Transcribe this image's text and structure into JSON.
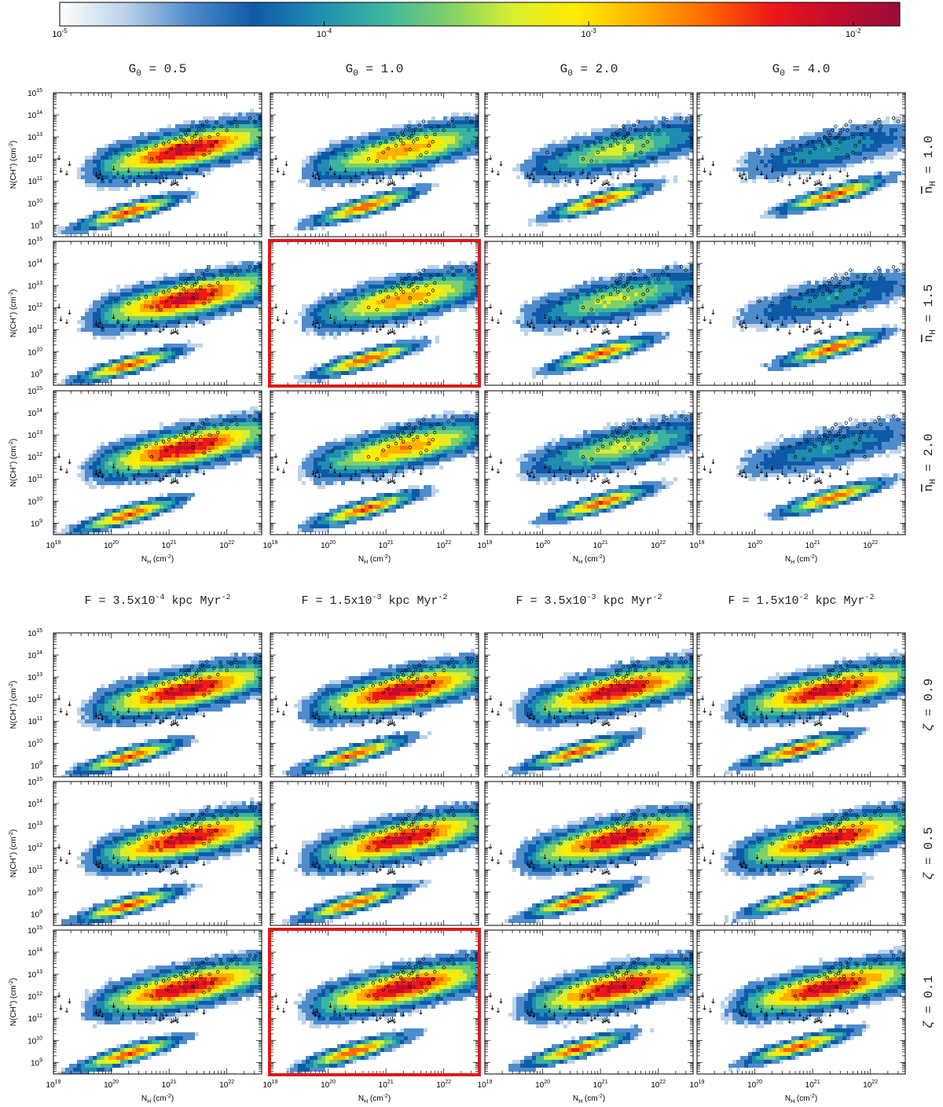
{
  "colorbar": {
    "ticks": [
      {
        "mant": "10",
        "exp": "-5",
        "value": 1e-05
      },
      {
        "mant": "10",
        "exp": "-4",
        "value": 0.0001
      },
      {
        "mant": "10",
        "exp": "-3",
        "value": 0.001
      },
      {
        "mant": "10",
        "exp": "-2",
        "value": 0.01
      }
    ],
    "range": [
      1e-05,
      0.015
    ],
    "colors": [
      "#ffffff",
      "#bcd3ea",
      "#4f8ccc",
      "#0f5aa8",
      "#1f8cb0",
      "#3bb5a0",
      "#7dd06a",
      "#d8ee30",
      "#ffec00",
      "#ffb000",
      "#ff6a00",
      "#ee1818",
      "#c40c2c",
      "#9a0c3a"
    ]
  },
  "top_block": {
    "col_titles": [
      {
        "prefix": "G",
        "sub": "0",
        "rest": " = 0.5"
      },
      {
        "prefix": "G",
        "sub": "0",
        "rest": " = 1.0"
      },
      {
        "prefix": "G",
        "sub": "0",
        "rest": " = 2.0"
      },
      {
        "prefix": "G",
        "sub": "0",
        "rest": " = 4.0"
      }
    ],
    "row_titles": [
      {
        "sym": "n",
        "sub": "H",
        "rest": " = 1.0"
      },
      {
        "sym": "n",
        "sub": "H",
        "rest": " = 1.5"
      },
      {
        "sym": "n",
        "sub": "H",
        "rest": " = 2.0"
      }
    ],
    "highlight": [
      [
        1,
        1
      ]
    ]
  },
  "bottom_block": {
    "col_titles": [
      {
        "text": "F = 3.5x10",
        "sup": "-4",
        "rest": " kpc Myr",
        "sup2": "-2"
      },
      {
        "text": "F = 1.5x10",
        "sup": "-3",
        "rest": " kpc Myr",
        "sup2": "-2"
      },
      {
        "text": "F = 3.5x10",
        "sup": "-3",
        "rest": " kpc Myr",
        "sup2": "-2"
      },
      {
        "text": "F = 1.5x10",
        "sup": "-2",
        "rest": " kpc Myr",
        "sup2": "-2"
      }
    ],
    "row_titles": [
      {
        "sym": "ζ",
        "rest": " = 0.9"
      },
      {
        "sym": "ζ",
        "rest": " = 0.5"
      },
      {
        "sym": "ζ",
        "rest": " = 0.1"
      }
    ],
    "highlight": [
      [
        2,
        1
      ]
    ]
  },
  "axes": {
    "xlabel": {
      "main": "N",
      "sub": "H",
      "unit": " (cm",
      "sup": "-2",
      "close": ")"
    },
    "ylabel": {
      "main": "N(CH",
      "sup1": "+",
      "mid": ") (cm",
      "sup2": "-2",
      "close": ")"
    },
    "xlim": [
      1e+19,
      4e+22
    ],
    "ylim": [
      300000000.0,
      1000000000000000.0
    ],
    "xscale": "log",
    "yscale": "log",
    "xticks": [
      {
        "mant": "10",
        "exp": "19",
        "value": 1e+19
      },
      {
        "mant": "10",
        "exp": "20",
        "value": 1e+20
      },
      {
        "mant": "10",
        "exp": "21",
        "value": 1e+21
      },
      {
        "mant": "10",
        "exp": "22",
        "value": 1e+22
      }
    ],
    "yticks": [
      {
        "mant": "10",
        "exp": "9",
        "value": 1000000000.0
      },
      {
        "mant": "10",
        "exp": "10",
        "value": 10000000000.0
      },
      {
        "mant": "10",
        "exp": "11",
        "value": 100000000000.0
      },
      {
        "mant": "10",
        "exp": "12",
        "value": 1000000000000.0
      },
      {
        "mant": "10",
        "exp": "13",
        "value": 10000000000000.0
      },
      {
        "mant": "10",
        "exp": "14",
        "value": 100000000000000.0
      },
      {
        "mant": "10",
        "exp": "15",
        "value": 1000000000000000.0
      }
    ]
  },
  "chart_data": {
    "type": "heatmap",
    "description_grid": "2 blocks x 3 rows x 4 columns of 2D probability histograms of N(CH+) vs N_H with overplotted observations",
    "colorbar_label": "",
    "xlim": [
      1e+19,
      4e+22
    ],
    "ylim": [
      300000000.0,
      1000000000000000.0
    ],
    "xscale": "log",
    "yscale": "log",
    "observed_detections": [
      [
        1.2e+20,
        2000000000000.0
      ],
      [
        2e+20,
        1500000000000.0
      ],
      [
        3e+20,
        2500000000000.0
      ],
      [
        4e+20,
        3000000000000.0
      ],
      [
        5e+20,
        1000000000000.0
      ],
      [
        6e+20,
        4000000000000.0
      ],
      [
        8e+20,
        5000000000000.0
      ],
      [
        1e+21,
        6000000000000.0
      ],
      [
        1.3e+21,
        8000000000000.0
      ],
      [
        1.6e+21,
        10000000000000.0
      ],
      [
        2e+21,
        12000000000000.0
      ],
      [
        2.5e+21,
        9000000000000.0
      ],
      [
        3e+21,
        15000000000000.0
      ],
      [
        3.5e+21,
        8000000000000.0
      ],
      [
        4e+21,
        20000000000000.0
      ],
      [
        5e+21,
        10000000000000.0
      ],
      [
        6e+21,
        25000000000000.0
      ],
      [
        7e+21,
        13000000000000.0
      ],
      [
        8e+21,
        30000000000000.0
      ],
      [
        1e+22,
        20000000000000.0
      ],
      [
        1.2e+22,
        40000000000000.0
      ],
      [
        1.5e+22,
        30000000000000.0
      ],
      [
        2e+21,
        5000000000000.0
      ],
      [
        2.5e+21,
        30000000000000.0
      ],
      [
        3e+21,
        6000000000000.0
      ],
      [
        1.5e+21,
        4000000000000.0
      ],
      [
        9e+20,
        2000000000000.0
      ],
      [
        7e+20,
        800000000000.0
      ],
      [
        4.5e+21,
        50000000000000.0
      ],
      [
        5.5e+21,
        4000000000000.0
      ],
      [
        2.2e+21,
        20000000000000.0
      ],
      [
        2.8e+21,
        11000000000000.0
      ],
      [
        3.3e+21,
        22000000000000.0
      ],
      [
        1.8e+21,
        7000000000000.0
      ],
      [
        6.5e+21,
        6000000000000.0
      ],
      [
        1.1e+21,
        3000000000000.0
      ],
      [
        3.8e+21,
        35000000000000.0
      ],
      [
        1.4e+22,
        60000000000000.0
      ],
      [
        2.5e+22,
        70000000000000.0
      ],
      [
        3e+22,
        50000000000000.0
      ],
      [
        5e+21,
        2000000000000.0
      ],
      [
        8e+21,
        1000000000000.0
      ],
      [
        4e+21,
        1500000000000.0
      ],
      [
        2.6e+21,
        2700000000000.0
      ],
      [
        1.9e+21,
        16000000000000.0
      ]
    ],
    "observed_upper_limits": [
      [
        1.25e+19,
        1500000000000.0
      ],
      [
        1.35e+19,
        400000000000.0
      ],
      [
        1.7e+19,
        300000000000.0
      ],
      [
        1.9e+19,
        800000000000.0
      ],
      [
        5.5e+19,
        250000000000.0
      ],
      [
        6e+19,
        200000000000.0
      ],
      [
        6.5e+19,
        300000000000.0
      ],
      [
        7e+19,
        180000000000.0
      ],
      [
        1.1e+20,
        500000000000.0
      ],
      [
        1.3e+20,
        300000000000.0
      ],
      [
        1.6e+20,
        200000000000.0
      ],
      [
        2e+20,
        400000000000.0
      ],
      [
        2.5e+20,
        150000000000.0
      ],
      [
        3e+20,
        250000000000.0
      ],
      [
        4e+20,
        100000000000.0
      ],
      [
        5e+20,
        350000000000.0
      ],
      [
        6e+20,
        200000000000.0
      ],
      [
        7e+20,
        120000000000.0
      ],
      [
        8e+20,
        150000000000.0
      ],
      [
        9e+20,
        200000000000.0
      ],
      [
        1.1e+21,
        100000000000.0
      ],
      [
        1.2e+21,
        110000000000.0
      ],
      [
        1.3e+21,
        120000000000.0
      ],
      [
        1.4e+21,
        100000000000.0
      ],
      [
        1.5e+21,
        300000000000.0
      ],
      [
        2e+21,
        200000000000.0
      ],
      [
        3e+21,
        400000000000.0
      ],
      [
        4e+21,
        250000000000.0
      ]
    ]
  }
}
